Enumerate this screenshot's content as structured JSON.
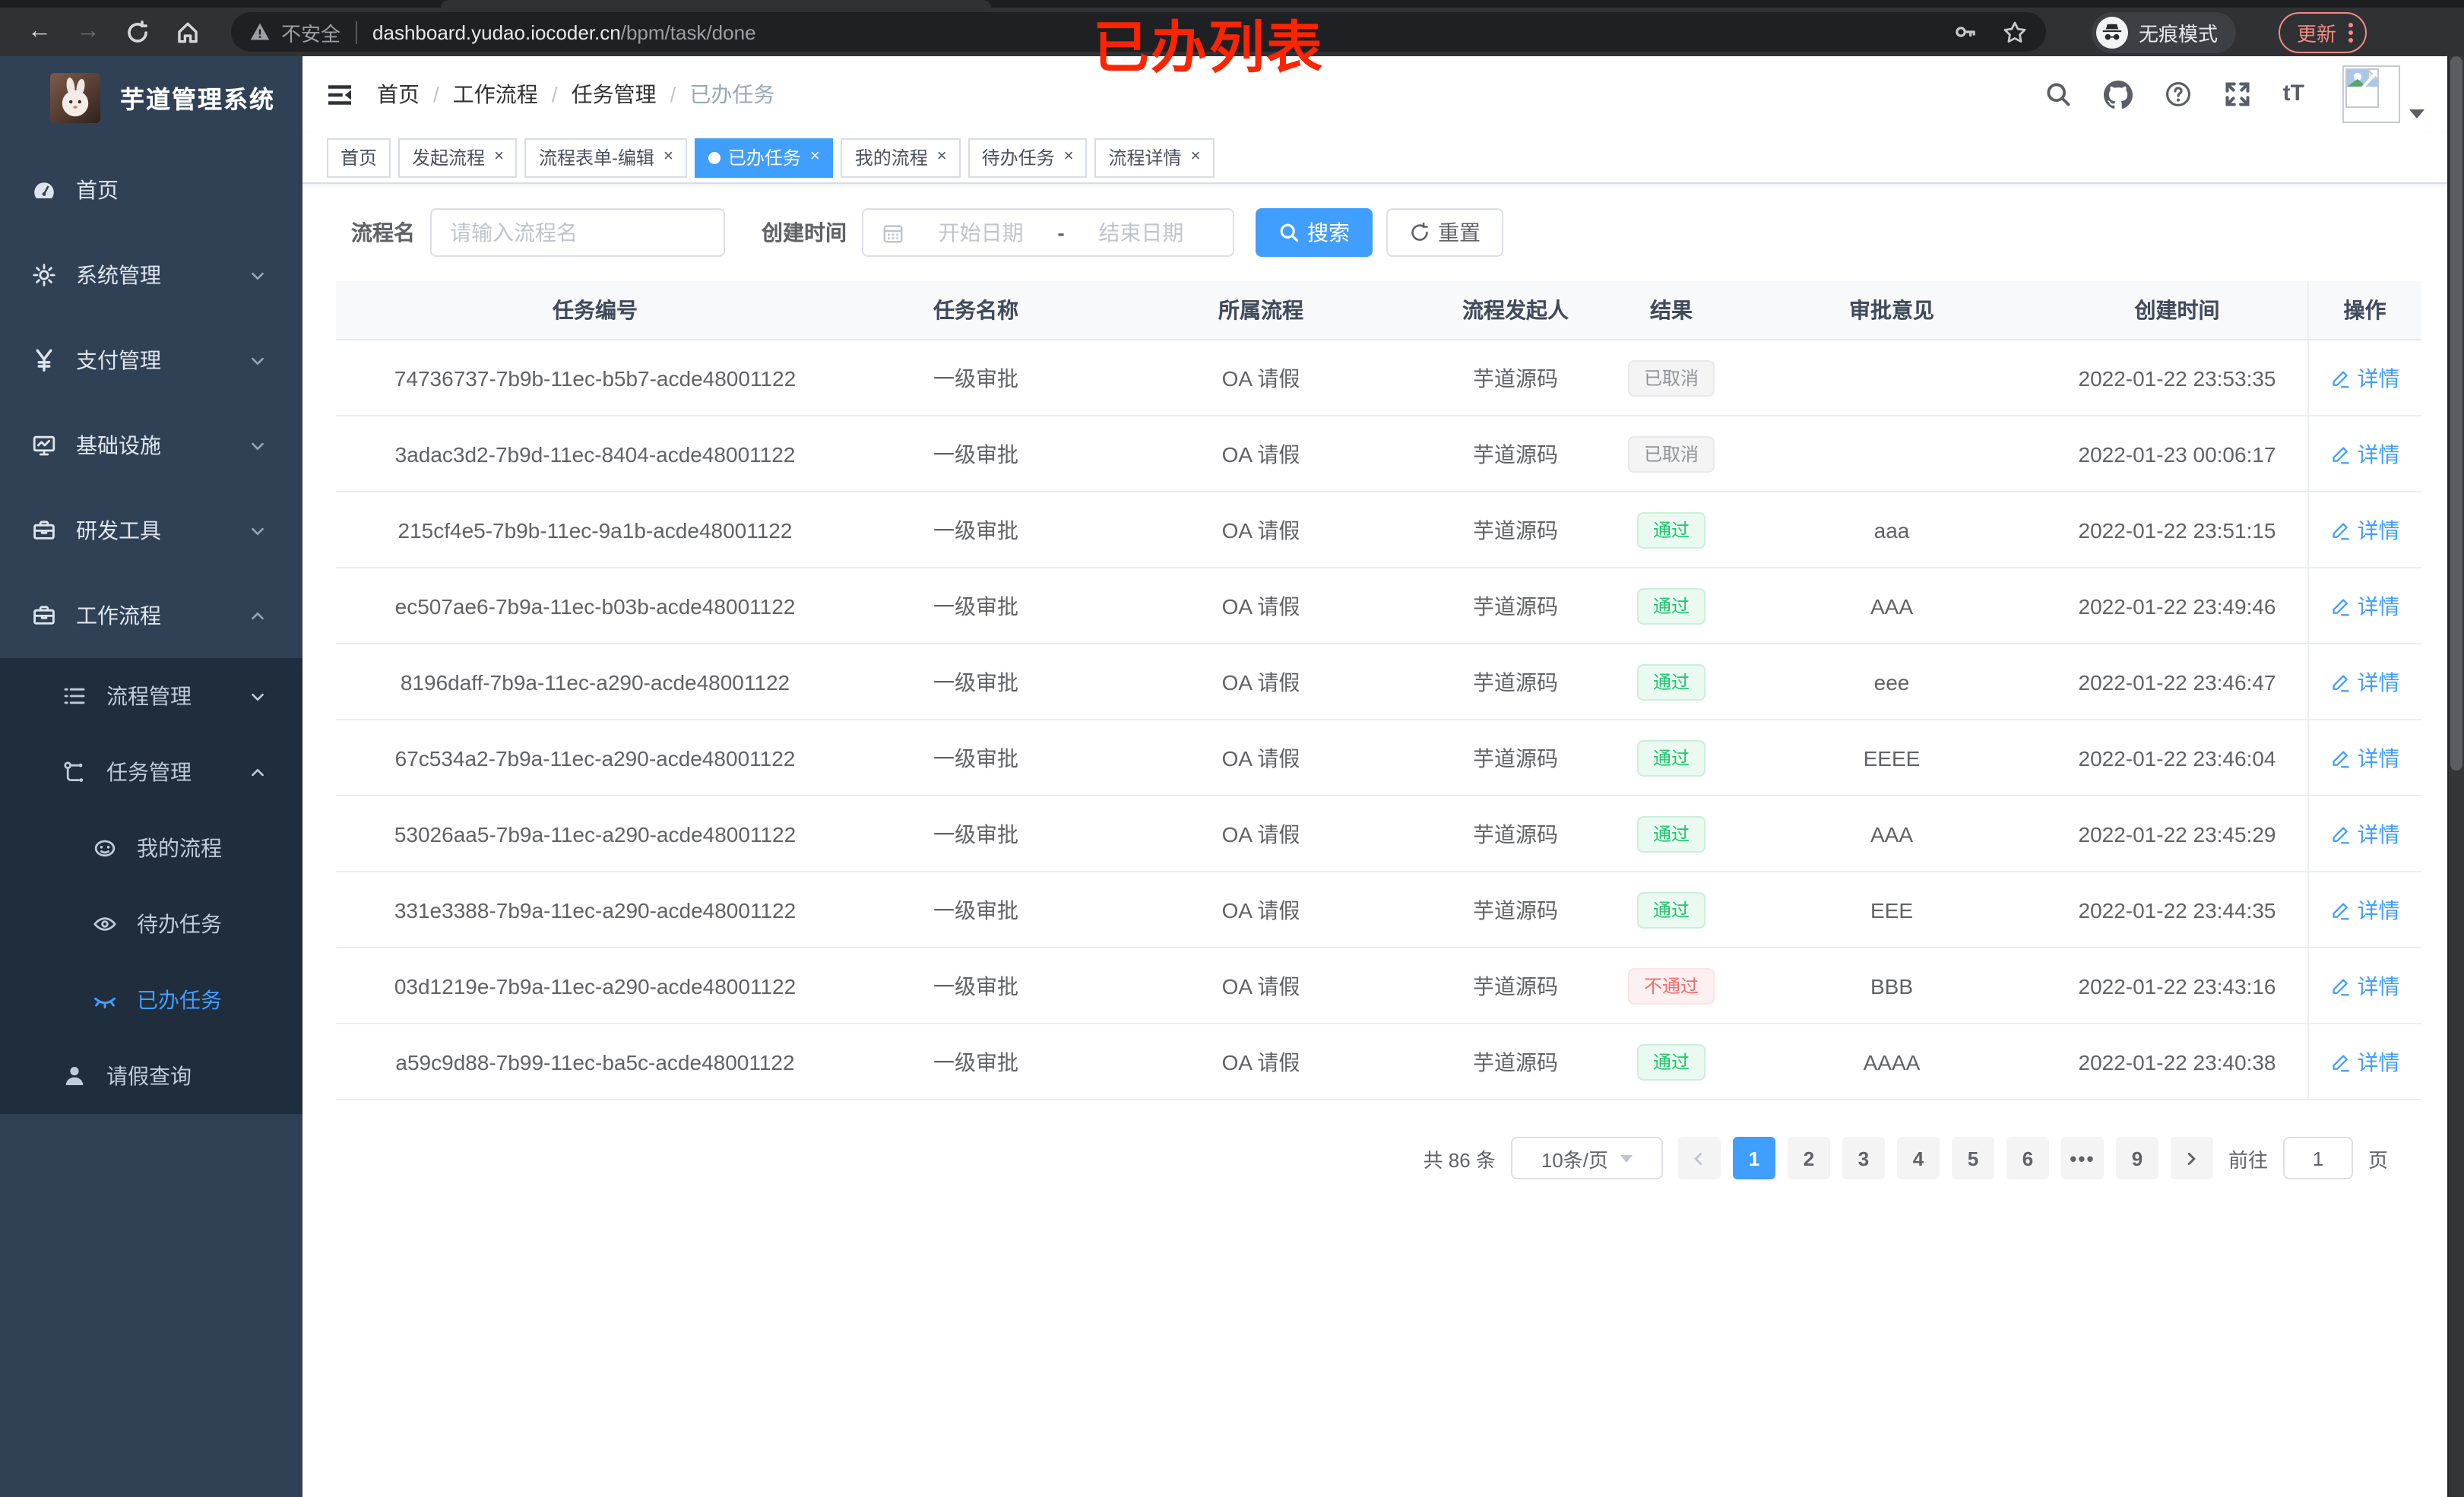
{
  "colors": {
    "accent": "#409eff",
    "sidebar_bg": "#304156",
    "submenu_bg": "#1f2d3d",
    "annotation_red": "#ff2400",
    "tag_success": "#1ec76b",
    "tag_danger": "#f56c6c",
    "tag_info": "#909399"
  },
  "annotation": "已办列表",
  "browser": {
    "security_label": "不安全",
    "url_host": "dashboard.yudao.iocoder.cn",
    "url_path": "/bpm/task/done",
    "incognito_label": "无痕模式",
    "update_label": "更新"
  },
  "sidebar": {
    "title": "芋道管理系统",
    "items": [
      {
        "key": "home",
        "label": "首页",
        "icon": "dashboard-icon",
        "level": 1
      },
      {
        "key": "system-management",
        "label": "系统管理",
        "icon": "gear-icon",
        "level": 1,
        "chevron": "down"
      },
      {
        "key": "payment-management",
        "label": "支付管理",
        "icon": "yen-icon",
        "level": 1,
        "chevron": "down"
      },
      {
        "key": "infrastructure",
        "label": "基础设施",
        "icon": "monitor-icon",
        "level": 1,
        "chevron": "down"
      },
      {
        "key": "dev-tools",
        "label": "研发工具",
        "icon": "toolbox-icon",
        "level": 1,
        "chevron": "down"
      },
      {
        "key": "workflow",
        "label": "工作流程",
        "icon": "toolbox-icon",
        "level": 1,
        "chevron": "up"
      },
      {
        "key": "process-management",
        "label": "流程管理",
        "icon": "list-icon",
        "level": 2,
        "chevron": "down",
        "sub": true
      },
      {
        "key": "task-management",
        "label": "任务管理",
        "icon": "flow-icon",
        "level": 2,
        "chevron": "up",
        "sub": true
      },
      {
        "key": "my-process",
        "label": "我的流程",
        "icon": "face-icon",
        "level": 3,
        "sub": true
      },
      {
        "key": "todo-tasks",
        "label": "待办任务",
        "icon": "eye-open-icon",
        "level": 3,
        "sub": true
      },
      {
        "key": "done-tasks",
        "label": "已办任务",
        "icon": "eye-closed-icon",
        "level": 3,
        "sub": true,
        "active": true
      },
      {
        "key": "leave-query",
        "label": "请假查询",
        "icon": "user-icon",
        "level": 2,
        "sub": true
      }
    ]
  },
  "navbar": {
    "breadcrumb": [
      "首页",
      "工作流程",
      "任务管理",
      "已办任务"
    ],
    "separator": "/"
  },
  "tabsbar": {
    "close_glyph": "×",
    "tabs": [
      {
        "key": "home",
        "label": "首页"
      },
      {
        "key": "start-process",
        "label": "发起流程",
        "closable": true
      },
      {
        "key": "process-form-edit",
        "label": "流程表单-编辑",
        "closable": true
      },
      {
        "key": "done-tasks",
        "label": "已办任务",
        "closable": true,
        "active": true
      },
      {
        "key": "my-process",
        "label": "我的流程",
        "closable": true
      },
      {
        "key": "todo-tasks",
        "label": "待办任务",
        "closable": true
      },
      {
        "key": "process-detail",
        "label": "流程详情",
        "closable": true
      }
    ]
  },
  "filters": {
    "name_label": "流程名",
    "name_placeholder": "请输入流程名",
    "time_label": "创建时间",
    "start_placeholder": "开始日期",
    "range_separator": "-",
    "end_placeholder": "结束日期",
    "search_label": "搜索",
    "reset_label": "重置"
  },
  "table": {
    "columns": [
      "任务编号",
      "任务名称",
      "所属流程",
      "流程发起人",
      "结果",
      "审批意见",
      "创建时间",
      "操作"
    ],
    "action_label": "详情",
    "rows": [
      {
        "id": "74736737-7b9b-11ec-b5b7-acde48001122",
        "name": "一级审批",
        "process": "OA 请假",
        "starter": "芋道源码",
        "result": {
          "label": "已取消",
          "type": "info"
        },
        "comment": "",
        "created": "2022-01-22 23:53:35"
      },
      {
        "id": "3adac3d2-7b9d-11ec-8404-acde48001122",
        "name": "一级审批",
        "process": "OA 请假",
        "starter": "芋道源码",
        "result": {
          "label": "已取消",
          "type": "info"
        },
        "comment": "",
        "created": "2022-01-23 00:06:17"
      },
      {
        "id": "215cf4e5-7b9b-11ec-9a1b-acde48001122",
        "name": "一级审批",
        "process": "OA 请假",
        "starter": "芋道源码",
        "result": {
          "label": "通过",
          "type": "success"
        },
        "comment": "aaa",
        "created": "2022-01-22 23:51:15"
      },
      {
        "id": "ec507ae6-7b9a-11ec-b03b-acde48001122",
        "name": "一级审批",
        "process": "OA 请假",
        "starter": "芋道源码",
        "result": {
          "label": "通过",
          "type": "success"
        },
        "comment": "AAA",
        "created": "2022-01-22 23:49:46"
      },
      {
        "id": "8196daff-7b9a-11ec-a290-acde48001122",
        "name": "一级审批",
        "process": "OA 请假",
        "starter": "芋道源码",
        "result": {
          "label": "通过",
          "type": "success"
        },
        "comment": "eee",
        "created": "2022-01-22 23:46:47"
      },
      {
        "id": "67c534a2-7b9a-11ec-a290-acde48001122",
        "name": "一级审批",
        "process": "OA 请假",
        "starter": "芋道源码",
        "result": {
          "label": "通过",
          "type": "success"
        },
        "comment": "EEEE",
        "created": "2022-01-22 23:46:04"
      },
      {
        "id": "53026aa5-7b9a-11ec-a290-acde48001122",
        "name": "一级审批",
        "process": "OA 请假",
        "starter": "芋道源码",
        "result": {
          "label": "通过",
          "type": "success"
        },
        "comment": "AAA",
        "created": "2022-01-22 23:45:29"
      },
      {
        "id": "331e3388-7b9a-11ec-a290-acde48001122",
        "name": "一级审批",
        "process": "OA 请假",
        "starter": "芋道源码",
        "result": {
          "label": "通过",
          "type": "success"
        },
        "comment": "EEE",
        "created": "2022-01-22 23:44:35"
      },
      {
        "id": "03d1219e-7b9a-11ec-a290-acde48001122",
        "name": "一级审批",
        "process": "OA 请假",
        "starter": "芋道源码",
        "result": {
          "label": "不通过",
          "type": "danger"
        },
        "comment": "BBB",
        "created": "2022-01-22 23:43:16"
      },
      {
        "id": "a59c9d88-7b99-11ec-ba5c-acde48001122",
        "name": "一级审批",
        "process": "OA 请假",
        "starter": "芋道源码",
        "result": {
          "label": "通过",
          "type": "success"
        },
        "comment": "AAAA",
        "created": "2022-01-22 23:40:38"
      }
    ]
  },
  "pagination": {
    "total_label": "共 86 条",
    "page_size_label": "10条/页",
    "items": [
      {
        "type": "prev"
      },
      {
        "type": "page",
        "label": "1",
        "active": true
      },
      {
        "type": "page",
        "label": "2"
      },
      {
        "type": "page",
        "label": "3"
      },
      {
        "type": "page",
        "label": "4"
      },
      {
        "type": "page",
        "label": "5"
      },
      {
        "type": "page",
        "label": "6"
      },
      {
        "type": "ellipsis",
        "label": "•••"
      },
      {
        "type": "page",
        "label": "9"
      },
      {
        "type": "next"
      }
    ],
    "goto_label": "前往",
    "goto_value": "1",
    "page_unit_label": "页"
  }
}
